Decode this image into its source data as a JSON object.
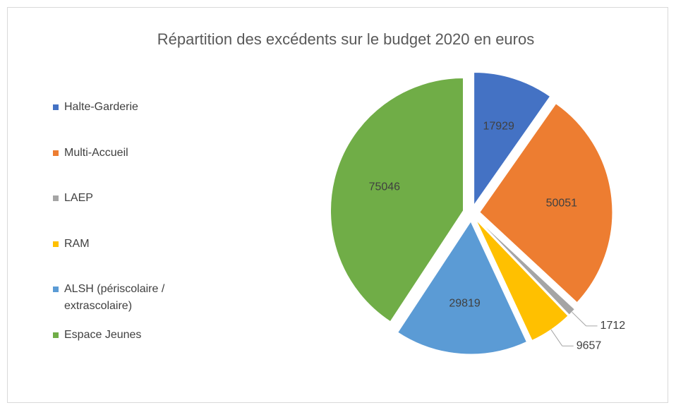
{
  "chart_data": {
    "type": "pie",
    "title": "Répartition des excédents sur le budget 2020 en euros",
    "categories": [
      "Halte-Garderie",
      "Multi-Accueil",
      "LAEP",
      "RAM",
      "ALSH (périscolaire / extrascolaire)",
      "Espace Jeunes"
    ],
    "values": [
      17929,
      50051,
      1712,
      9657,
      29819,
      75046
    ],
    "colors": [
      "#4472c4",
      "#ed7d31",
      "#a5a5a5",
      "#ffc000",
      "#5b9bd5",
      "#70ad47"
    ],
    "legend": "left"
  }
}
